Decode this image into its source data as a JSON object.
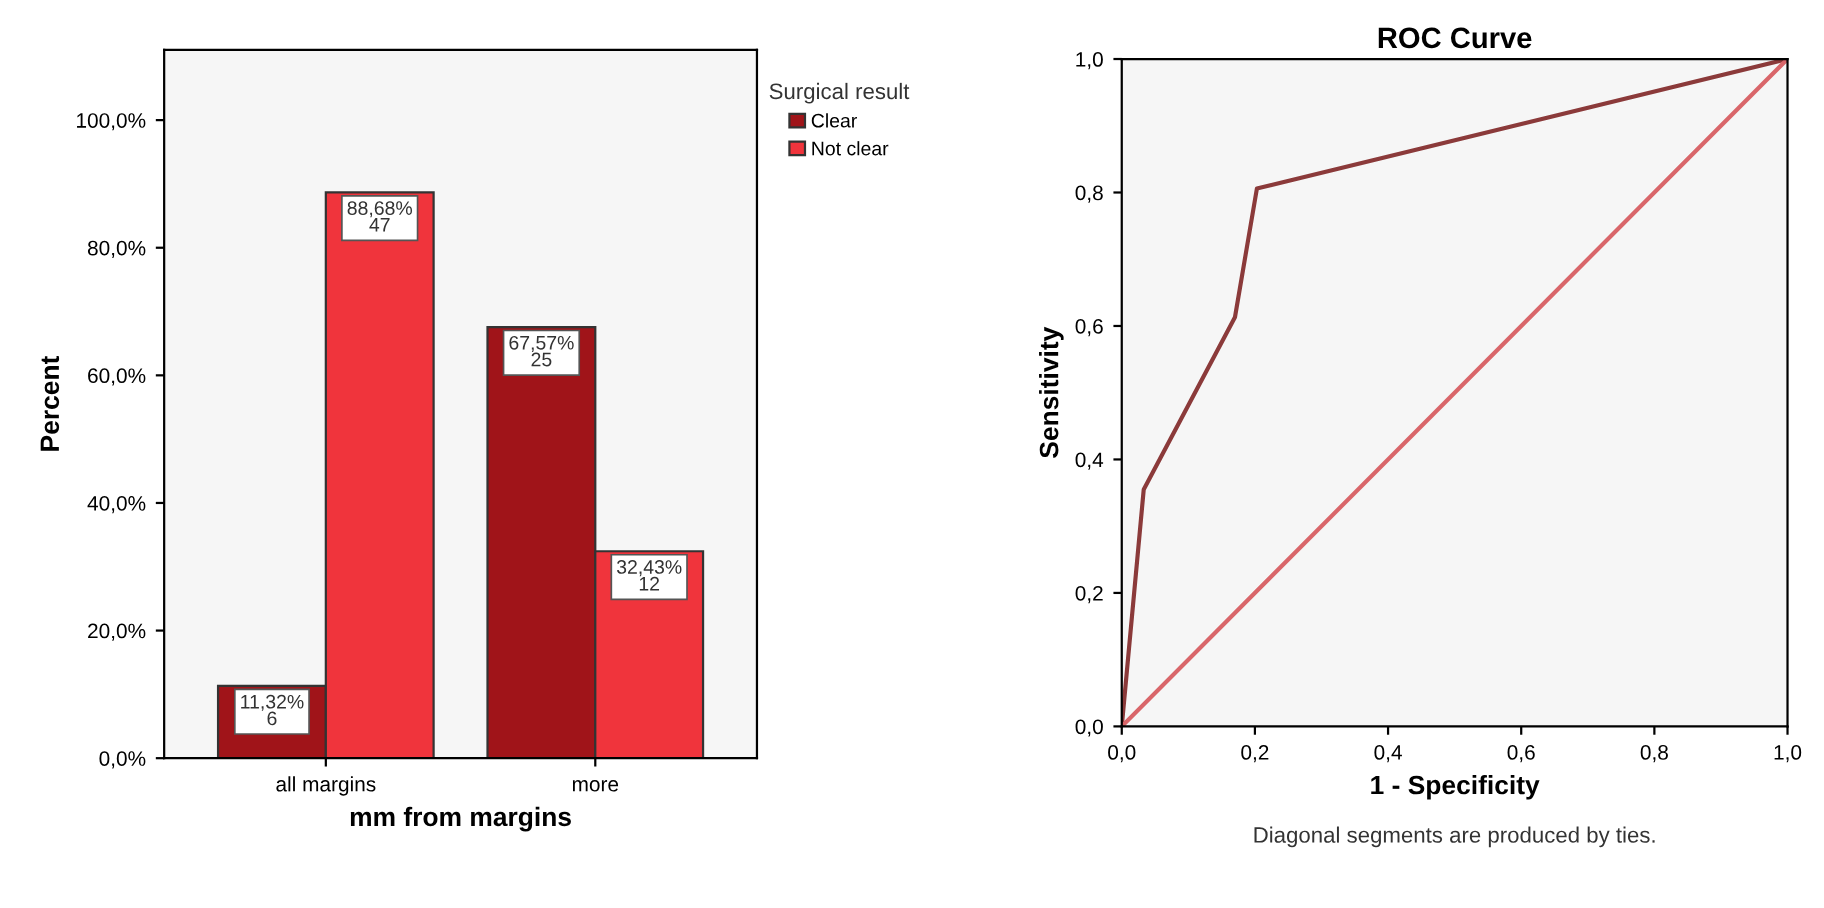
{
  "chart_data": [
    {
      "type": "bar",
      "xlabel": "mm from margins",
      "ylabel": "Percent",
      "legend_title": "Surgical result",
      "legend": "top right",
      "categories": [
        "all margins",
        "more"
      ],
      "series": [
        {
          "name": "Clear",
          "color": "#a01419",
          "values": [
            11.32,
            67.57
          ],
          "value_labels": [
            "11,32%\n6",
            "67,57%\n25"
          ]
        },
        {
          "name": "Not clear",
          "color": "#f0343c",
          "values": [
            88.68,
            32.43
          ],
          "value_labels": [
            "88,68%\n47",
            "32,43%\n12"
          ]
        }
      ],
      "ylim": [
        0,
        111
      ],
      "yticks": [
        {
          "value": 0,
          "label": "0,0%"
        },
        {
          "value": 20,
          "label": "20,0%"
        },
        {
          "value": 40,
          "label": "40,0%"
        },
        {
          "value": 60,
          "label": "60,0%"
        },
        {
          "value": 80,
          "label": "80,0%"
        },
        {
          "value": 100,
          "label": "100,0%"
        }
      ],
      "grid": false
    },
    {
      "type": "line",
      "title": "ROC Curve",
      "xlabel": "1 - Specificity",
      "ylabel": "Sensitivity",
      "annotations": [
        "Diagonal segments are produced by ties."
      ],
      "series": [
        {
          "color": "#8b3a3a",
          "x": [
            0,
            0.033,
            0.17,
            0.203,
            1
          ],
          "values": [
            0,
            0.355,
            0.613,
            0.806,
            1
          ]
        },
        {
          "color": "#d9666a",
          "x": [
            0,
            1
          ],
          "values": [
            0,
            1
          ]
        }
      ],
      "xlim": [
        0,
        1
      ],
      "ylim": [
        0,
        1
      ],
      "xticks": [
        {
          "value": 0,
          "label": "0,0"
        },
        {
          "value": 0.2,
          "label": "0,2"
        },
        {
          "value": 0.4,
          "label": "0,4"
        },
        {
          "value": 0.6,
          "label": "0,6"
        },
        {
          "value": 0.8,
          "label": "0,8"
        },
        {
          "value": 1,
          "label": "1,0"
        }
      ],
      "yticks": [
        {
          "value": 0,
          "label": "0,0"
        },
        {
          "value": 0.2,
          "label": "0,2"
        },
        {
          "value": 0.4,
          "label": "0,4"
        },
        {
          "value": 0.6,
          "label": "0,6"
        },
        {
          "value": 0.8,
          "label": "0,8"
        },
        {
          "value": 1,
          "label": "1,0"
        }
      ],
      "grid": false,
      "legend": false
    }
  ]
}
